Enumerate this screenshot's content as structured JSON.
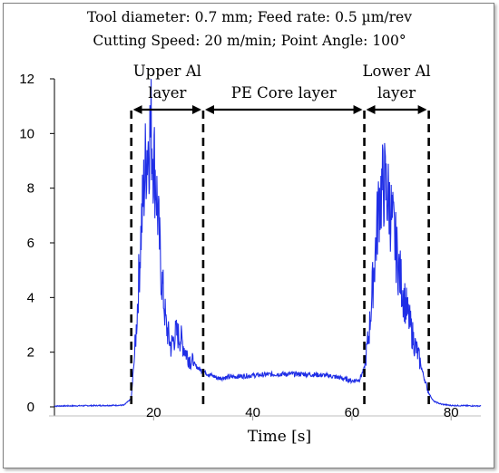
{
  "header": {
    "line1": "Tool diameter: 0.7 mm;  Feed rate: 0.5 µm/rev",
    "line2": "Cutting Speed: 20 m/min; Point Angle: 100°"
  },
  "colors": {
    "signal": "#1f2ee6",
    "axis": "#000000"
  },
  "chart_data": {
    "type": "line",
    "title": "",
    "xlabel": "Time [s]",
    "ylabel": "",
    "xlim": [
      0,
      86
    ],
    "ylim": [
      0,
      12
    ],
    "xticks": [
      20,
      40,
      60,
      80
    ],
    "yticks": [
      0,
      2,
      4,
      6,
      8,
      10,
      12
    ],
    "grid": false,
    "series": [
      {
        "x": [
          0,
          5,
          10,
          14,
          15.5,
          16.5,
          17.5,
          18.5,
          19.5,
          20.5,
          21.5,
          22.5,
          23.5,
          24.5,
          25.5,
          26.5,
          27.5,
          28.5,
          29.5,
          31,
          33,
          36,
          40,
          45,
          50,
          55,
          58,
          60,
          61.5,
          62.5,
          63.5,
          64.5,
          65.5,
          66.5,
          67.5,
          68.5,
          69.5,
          70.5,
          71.5,
          72.5,
          73.5,
          74.5,
          75.5,
          76.5,
          78,
          80,
          84,
          86
        ],
        "y": [
          0.03,
          0.04,
          0.05,
          0.06,
          0.3,
          2.8,
          6.5,
          9.3,
          10.2,
          8.2,
          5.0,
          3.0,
          2.2,
          2.7,
          2.5,
          2.0,
          1.7,
          1.5,
          1.35,
          1.2,
          1.05,
          1.1,
          1.15,
          1.2,
          1.2,
          1.15,
          1.05,
          0.95,
          1.0,
          1.4,
          2.8,
          5.2,
          7.6,
          8.2,
          7.5,
          6.3,
          5.0,
          4.0,
          3.2,
          2.4,
          1.8,
          1.1,
          0.5,
          0.2,
          0.1,
          0.05,
          0.04,
          0.03
        ]
      }
    ],
    "regions": [
      {
        "label": "Upper Al layer",
        "lines": [
          "Upper Al",
          "layer"
        ],
        "x_start": 15.5,
        "x_end": 30
      },
      {
        "label": "PE Core layer",
        "lines": [
          "PE Core layer"
        ],
        "x_start": 30,
        "x_end": 62.5
      },
      {
        "label": "Lower Al layer",
        "lines": [
          "Lower Al",
          "layer"
        ],
        "x_start": 62.5,
        "x_end": 75.5
      }
    ]
  }
}
